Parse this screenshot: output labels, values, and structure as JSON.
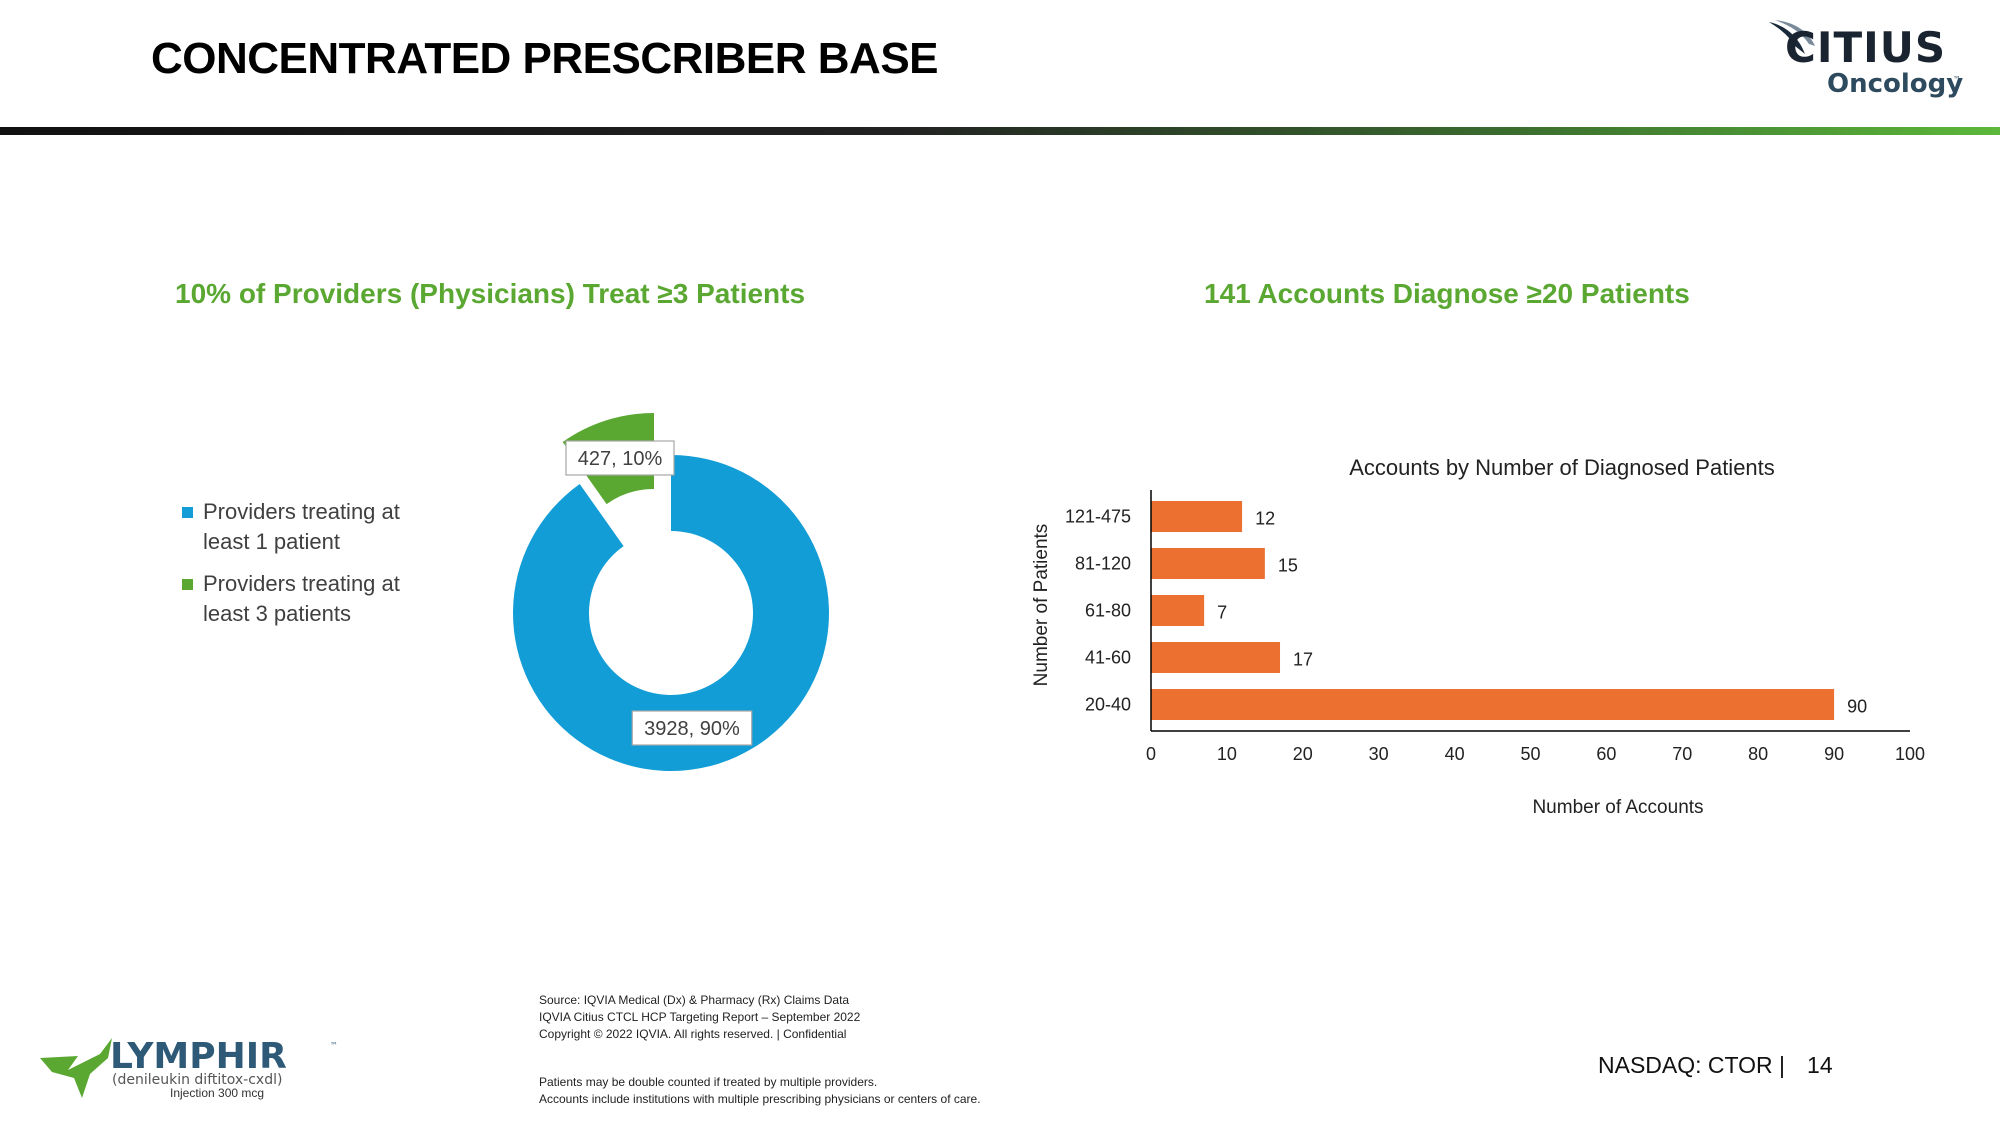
{
  "header": {
    "title": "CONCENTRATED PRESCRIBER BASE",
    "logo": {
      "name": "CITIUS",
      "sub": "Oncology",
      "tm": "™"
    }
  },
  "left": {
    "subhead": "10% of Providers (Physicians) Treat ≥3 Patients",
    "legend": [
      {
        "lines": [
          "Providers treating at",
          "least 1 patient"
        ],
        "color": "#129dd6"
      },
      {
        "lines": [
          "Providers treating at",
          "least 3 patients"
        ],
        "color": "#5aa832"
      }
    ]
  },
  "right": {
    "subhead": "141 Accounts Diagnose ≥20 Patients"
  },
  "chart_data": [
    {
      "type": "pie",
      "variant": "donut",
      "labels": [
        "Providers treating at least 1 patient",
        "Providers treating at least 3 patients"
      ],
      "values": [
        3928,
        427
      ],
      "percents": [
        90,
        10
      ],
      "data_labels": [
        "3928, 90%",
        "427, 10%"
      ],
      "colors": [
        "#129dd6",
        "#5aa832"
      ]
    },
    {
      "type": "bar",
      "orientation": "horizontal",
      "title": "Accounts by Number of Diagnosed Patients",
      "categories": [
        "121-475",
        "81-120",
        "61-80",
        "41-60",
        "20-40"
      ],
      "values": [
        12,
        15,
        7,
        17,
        90
      ],
      "xlabel": "Number of Accounts",
      "ylabel": "Number of Patients",
      "xlim": [
        0,
        100
      ],
      "xticks": [
        0,
        10,
        20,
        30,
        40,
        50,
        60,
        70,
        80,
        90,
        100
      ],
      "color": "#ec7030",
      "grid": false
    }
  ],
  "sources": {
    "lines": [
      "Source: IQVIA Medical (Dx) & Pharmacy (Rx) Claims Data",
      "IQVIA Citius CTCL HCP Targeting Report – September 2022",
      "Copyright © 2022 IQVIA. All rights reserved. | Confidential"
    ],
    "notes": [
      "Patients may be double counted if treated by multiple providers.",
      "Accounts include institutions with multiple prescribing physicians or centers of care."
    ]
  },
  "product": {
    "name": "LYMPHIR",
    "tm": "™",
    "generic": "(denileukin diftitox-cxdl)",
    "form": "Injection 300 mcg"
  },
  "footer": {
    "ticker": "NASDAQ: CTOR  |",
    "page": "14"
  }
}
